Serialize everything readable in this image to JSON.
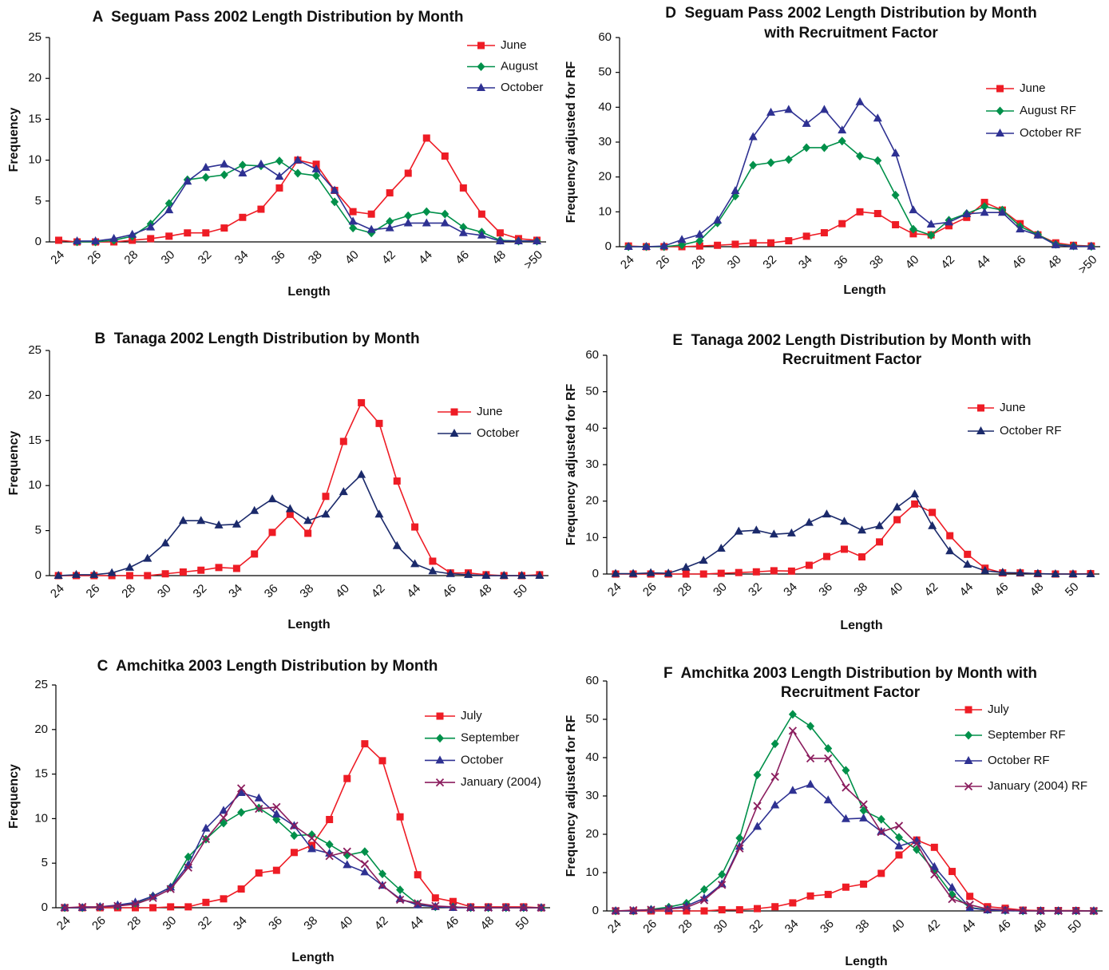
{
  "chart_data": [
    {
      "type": "line",
      "title": [
        "A  Seguam Pass 2002 Length Distribution by Month"
      ],
      "x_label": "Length",
      "y_label": "Frequency",
      "legend": "upper right",
      "categories": [
        "24",
        null,
        "26",
        null,
        "28",
        null,
        "30",
        null,
        "32",
        null,
        "34",
        null,
        "36",
        null,
        "38",
        null,
        "40",
        null,
        "42",
        null,
        "44",
        null,
        "46",
        null,
        "48",
        null,
        ">50"
      ],
      "ylim": [
        0,
        25
      ],
      "yticks": [
        0,
        5,
        10,
        15,
        20,
        25
      ],
      "series": [
        {
          "name": "June",
          "color": "#ee1c25",
          "marker": "square",
          "values": [
            0.2,
            0,
            0,
            0,
            0.2,
            0.4,
            0.7,
            1.1,
            1.1,
            1.7,
            3,
            4,
            6.6,
            10,
            9.5,
            6.3,
            3.7,
            3.4,
            6,
            8.4,
            12.7,
            10.5,
            6.6,
            3.4,
            1.1,
            0.4,
            0.2
          ]
        },
        {
          "name": "August",
          "color": "#00904a",
          "marker": "diamond",
          "values": [
            null,
            0,
            0,
            0.2,
            0.7,
            2.2,
            4.7,
            7.6,
            7.9,
            8.2,
            9.4,
            9.3,
            9.9,
            8.4,
            8.1,
            4.9,
            1.7,
            1.1,
            2.5,
            3.2,
            3.7,
            3.4,
            1.8,
            1.2,
            0.2,
            0.1,
            0.1
          ]
        },
        {
          "name": "October",
          "color": "#2e3192",
          "marker": "triangle",
          "values": [
            null,
            0.1,
            0.1,
            0.4,
            0.9,
            1.8,
            3.9,
            7.4,
            9.1,
            9.5,
            8.4,
            9.5,
            8,
            10,
            8.9,
            6.3,
            2.5,
            1.5,
            1.7,
            2.3,
            2.3,
            2.3,
            1.1,
            0.8,
            0.1,
            0.1,
            0.1
          ]
        }
      ]
    },
    {
      "type": "line",
      "title": [
        "B  Tanaga 2002 Length Distribution by Month"
      ],
      "x_label": "Length",
      "y_label": "Frequency",
      "legend": "upper right",
      "categories": [
        "24",
        null,
        "26",
        null,
        "28",
        null,
        "30",
        null,
        "32",
        null,
        "34",
        null,
        "36",
        null,
        "38",
        null,
        "40",
        null,
        "42",
        null,
        "44",
        null,
        "46",
        null,
        "48",
        null,
        "50",
        null
      ],
      "ylim": [
        0,
        25
      ],
      "yticks": [
        0,
        5,
        10,
        15,
        20,
        25
      ],
      "series": [
        {
          "name": "June",
          "color": "#ee1c25",
          "marker": "square",
          "values": [
            0,
            0,
            0,
            0,
            0,
            0,
            0.2,
            0.4,
            0.6,
            0.9,
            0.8,
            2.4,
            4.8,
            6.8,
            4.7,
            8.8,
            14.9,
            19.2,
            16.9,
            10.5,
            5.4,
            1.6,
            0.3,
            0.3,
            0.1,
            0,
            0,
            0.1
          ]
        },
        {
          "name": "October",
          "color": "#1b2a6b",
          "marker": "triangle",
          "values": [
            0,
            0.1,
            0.1,
            0.3,
            0.9,
            1.9,
            3.6,
            6.1,
            6.1,
            5.6,
            5.7,
            7.2,
            8.5,
            7.4,
            6.1,
            6.8,
            9.3,
            11.2,
            6.8,
            3.3,
            1.3,
            0.5,
            0.2,
            0.1,
            0,
            0,
            0,
            0
          ]
        }
      ]
    },
    {
      "type": "line",
      "title": [
        "C  Amchitka 2003 Length Distribution by Month"
      ],
      "x_label": "Length",
      "y_label": "Frequency",
      "legend": "upper right",
      "categories": [
        "24",
        null,
        "26",
        null,
        "28",
        null,
        "30",
        null,
        "32",
        null,
        "34",
        null,
        "36",
        null,
        "38",
        null,
        "40",
        null,
        "42",
        null,
        "44",
        null,
        "46",
        null,
        "48",
        null,
        "50",
        null
      ],
      "ylim": [
        0,
        25
      ],
      "yticks": [
        0,
        5,
        10,
        15,
        20,
        25
      ],
      "series": [
        {
          "name": "July",
          "color": "#ee1c25",
          "marker": "square",
          "values": [
            0,
            0,
            0,
            0,
            0,
            0,
            0.1,
            0.1,
            0.6,
            1,
            2.1,
            3.9,
            4.2,
            6.2,
            7,
            9.9,
            14.5,
            18.4,
            16.5,
            10.2,
            3.7,
            1.1,
            0.7,
            0.1,
            0.1,
            0.1,
            0.1,
            0
          ]
        },
        {
          "name": "September",
          "color": "#00904a",
          "marker": "diamond",
          "values": [
            0,
            0,
            0.1,
            0.2,
            0.5,
            1.3,
            2.3,
            5.7,
            7.7,
            9.5,
            10.7,
            11.2,
            9.9,
            8.1,
            8.2,
            7.1,
            5.9,
            6.3,
            3.8,
            2,
            0.4,
            0.1,
            0.1,
            0,
            0,
            0,
            0,
            0
          ]
        },
        {
          "name": "October",
          "color": "#2e3192",
          "marker": "triangle",
          "values": [
            0,
            0,
            0.1,
            0.3,
            0.6,
            1.3,
            2.3,
            4.8,
            8.9,
            10.9,
            12.9,
            12.3,
            10.5,
            9.2,
            6.6,
            6.1,
            4.8,
            4,
            2.5,
            1,
            0.3,
            0.1,
            0,
            0,
            0,
            0,
            0,
            0
          ]
        },
        {
          "name": "January (2004)",
          "color": "#8b1d5e",
          "marker": "x",
          "values": [
            0,
            0.1,
            0.1,
            0.2,
            0.4,
            1.1,
            2.1,
            4.5,
            7.7,
            10.1,
            13.4,
            11.1,
            11.3,
            9.2,
            7.8,
            5.8,
            6.3,
            4.9,
            2.5,
            0.9,
            0.5,
            0.2,
            0.1,
            0,
            0,
            0,
            0,
            0
          ]
        }
      ]
    },
    {
      "type": "line",
      "title": [
        "D  Seguam Pass 2002 Length Distribution by Month",
        "with Recruitment Factor"
      ],
      "x_label": "Length",
      "y_label": "Frequency adjusted for RF",
      "legend": "upper right",
      "categories": [
        "24",
        null,
        "26",
        null,
        "28",
        null,
        "30",
        null,
        "32",
        null,
        "34",
        null,
        "36",
        null,
        "38",
        null,
        "40",
        null,
        "42",
        null,
        "44",
        null,
        "46",
        null,
        "48",
        null,
        ">50"
      ],
      "ylim": [
        0,
        60
      ],
      "yticks": [
        0,
        10,
        20,
        30,
        40,
        50,
        60
      ],
      "series": [
        {
          "name": "June",
          "color": "#ee1c25",
          "marker": "square",
          "values": [
            0.2,
            0,
            0,
            0,
            0.2,
            0.4,
            0.7,
            1.1,
            1.1,
            1.7,
            3,
            4,
            6.6,
            10,
            9.5,
            6.3,
            3.7,
            3.4,
            6,
            8.4,
            12.7,
            10.5,
            6.6,
            3.4,
            1.1,
            0.4,
            0.2
          ]
        },
        {
          "name": "August RF",
          "color": "#00904a",
          "marker": "diamond",
          "values": [
            0,
            0,
            0,
            0.5,
            1.7,
            6.8,
            14.5,
            23.4,
            24.1,
            25,
            28.4,
            28.4,
            30.3,
            26,
            24.7,
            14.8,
            5,
            3.3,
            7.6,
            9.5,
            11.5,
            10.5,
            5.8,
            3.5,
            0.7,
            0.2,
            0.1
          ]
        },
        {
          "name": "October RF",
          "color": "#2e3192",
          "marker": "triangle",
          "values": [
            0,
            0,
            0.2,
            2,
            3.5,
            7.6,
            16,
            31.5,
            38.5,
            39.3,
            35.3,
            39.3,
            33.4,
            41.5,
            36.8,
            26.8,
            10.5,
            6.4,
            7,
            9.4,
            9.8,
            9.8,
            5,
            3.3,
            0.5,
            0.1,
            0.1
          ]
        }
      ]
    },
    {
      "type": "line",
      "title": [
        "E  Tanaga 2002 Length Distribution by Month with",
        "Recruitment Factor"
      ],
      "x_label": "Length",
      "y_label": "Frequency adjusted for RF",
      "legend": "upper right",
      "categories": [
        "24",
        null,
        "26",
        null,
        "28",
        null,
        "30",
        null,
        "32",
        null,
        "34",
        null,
        "36",
        null,
        "38",
        null,
        "40",
        null,
        "42",
        null,
        "44",
        null,
        "46",
        null,
        "48",
        null,
        "50",
        null
      ],
      "ylim": [
        0,
        60
      ],
      "yticks": [
        0,
        10,
        20,
        30,
        40,
        50,
        60
      ],
      "series": [
        {
          "name": "June",
          "color": "#ee1c25",
          "marker": "square",
          "values": [
            0,
            0,
            0,
            0,
            0,
            0,
            0.2,
            0.4,
            0.6,
            0.9,
            0.8,
            2.4,
            4.8,
            6.8,
            4.7,
            8.8,
            14.9,
            19.2,
            16.9,
            10.5,
            5.4,
            1.6,
            0.3,
            0.3,
            0.1,
            0,
            0,
            0.1
          ]
        },
        {
          "name": "October RF",
          "color": "#1b2a6b",
          "marker": "triangle",
          "values": [
            0.1,
            0.1,
            0.3,
            0.2,
            1.8,
            3.7,
            7,
            11.7,
            12,
            10.9,
            11.2,
            14.1,
            16.4,
            14.4,
            12,
            13.2,
            18.3,
            21.9,
            13.2,
            6.3,
            2.6,
            0.9,
            0.4,
            0.3,
            0.1,
            0,
            0,
            0
          ]
        }
      ]
    },
    {
      "type": "line",
      "title": [
        "F  Amchitka 2003 Length Distribution by Month with",
        "Recruitment Factor"
      ],
      "x_label": "Length",
      "y_label": "Frequency adjusted for RF",
      "legend": "upper right",
      "categories": [
        "24",
        null,
        "26",
        null,
        "28",
        null,
        "30",
        null,
        "32",
        null,
        "34",
        null,
        "36",
        null,
        "38",
        null,
        "40",
        null,
        "42",
        null,
        "44",
        null,
        "46",
        null,
        "48",
        null,
        "50",
        null
      ],
      "ylim": [
        0,
        60
      ],
      "yticks": [
        0,
        10,
        20,
        30,
        40,
        50,
        60
      ],
      "series": [
        {
          "name": "July",
          "color": "#ee1c25",
          "marker": "square",
          "values": [
            0,
            0,
            0,
            0,
            0,
            0,
            0.3,
            0.3,
            0.6,
            1.1,
            2.1,
            3.9,
            4.3,
            6.2,
            7,
            9.8,
            14.6,
            18.5,
            16.6,
            10.3,
            3.8,
            1.1,
            0.7,
            0.2,
            0.1,
            0.1,
            0.1,
            0
          ]
        },
        {
          "name": "September RF",
          "color": "#00904a",
          "marker": "diamond",
          "values": [
            0,
            0,
            0.4,
            1,
            2,
            5.6,
            9.5,
            19,
            35.5,
            43.6,
            51.3,
            48.2,
            42.4,
            36.7,
            26.2,
            23.9,
            19.2,
            16,
            10.5,
            4.3,
            0.9,
            0.3,
            0.1,
            0,
            0,
            0,
            0,
            0
          ]
        },
        {
          "name": "October RF",
          "color": "#2e3192",
          "marker": "triangle",
          "values": [
            0,
            0,
            0.3,
            0.6,
            1.3,
            3.3,
            7,
            16.8,
            22,
            27.6,
            31.4,
            33,
            28.9,
            24,
            24.2,
            20.7,
            16.9,
            18.3,
            11.5,
            6.1,
            0.8,
            0.2,
            0.1,
            0,
            0,
            0,
            0,
            0
          ]
        },
        {
          "name": "January (2004) RF",
          "color": "#8b1d5e",
          "marker": "x",
          "values": [
            0,
            0.2,
            0.3,
            0.5,
            0.9,
            2.8,
            6.8,
            16.3,
            27.4,
            35,
            47,
            39.8,
            39.8,
            32.2,
            27.8,
            20.6,
            22.2,
            17.6,
            9.5,
            3.1,
            1.6,
            0.5,
            0.3,
            0.1,
            0,
            0,
            0,
            0
          ]
        }
      ]
    }
  ]
}
